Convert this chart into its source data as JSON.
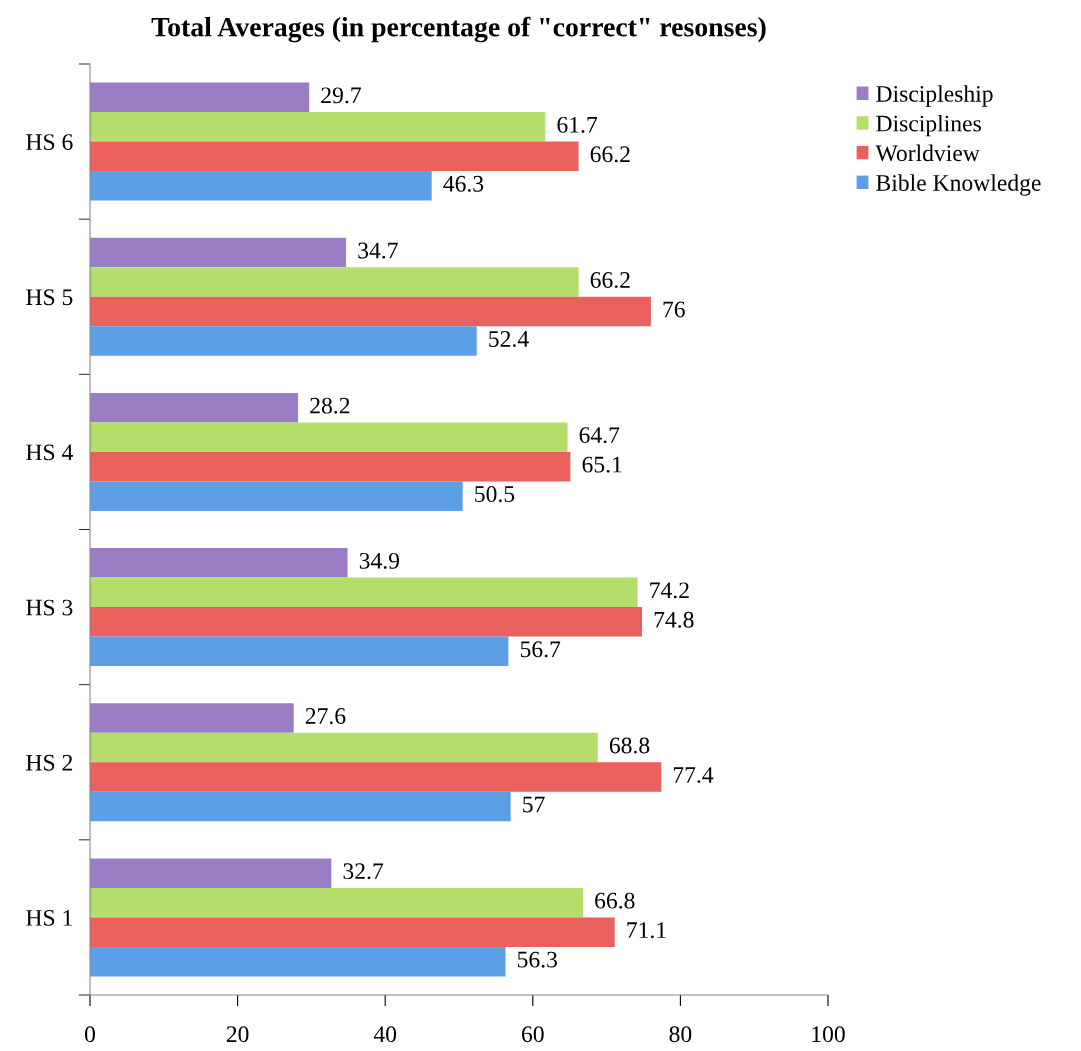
{
  "chart_data": {
    "type": "bar",
    "orientation": "horizontal",
    "title": "Total Averages (in percentage of \"correct\" resonses)",
    "categories": [
      "HS 6",
      "HS 5",
      "HS 4",
      "HS 3",
      "HS 2",
      "HS 1"
    ],
    "series": [
      {
        "name": "Discipleship",
        "color": "#9a7dc4",
        "values": [
          29.7,
          34.7,
          28.2,
          34.9,
          27.6,
          32.7
        ]
      },
      {
        "name": "Disciplines",
        "color": "#b3de6a",
        "values": [
          61.7,
          66.2,
          64.7,
          74.2,
          68.8,
          66.8
        ]
      },
      {
        "name": "Worldview",
        "color": "#e9605c",
        "values": [
          66.2,
          76,
          65.1,
          74.8,
          77.4,
          71.1
        ]
      },
      {
        "name": "Bible Knowledge",
        "color": "#5d9fe6",
        "values": [
          46.3,
          52.4,
          50.5,
          56.7,
          57,
          56.3
        ]
      }
    ],
    "xlim": [
      0,
      100
    ],
    "xticks": [
      0,
      20,
      40,
      60,
      80,
      100
    ],
    "data_labels": true,
    "grid": false,
    "legend": "top right"
  }
}
